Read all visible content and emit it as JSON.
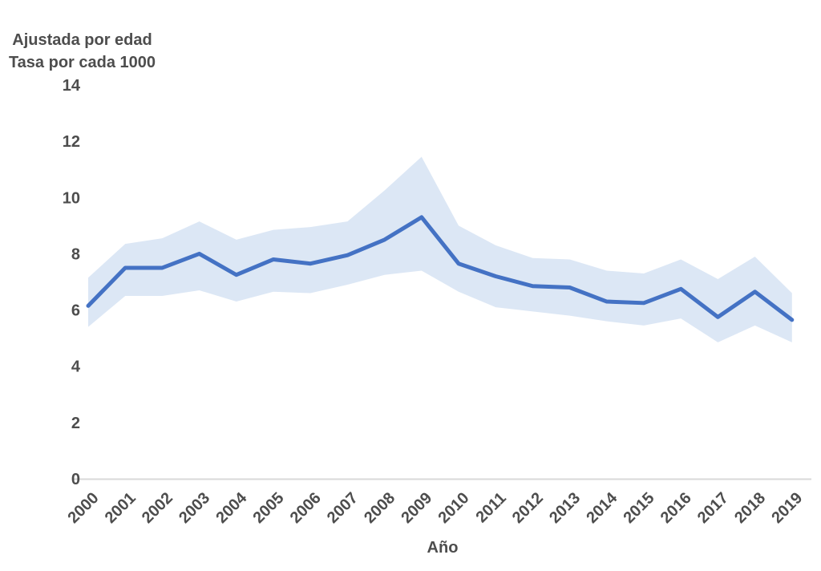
{
  "chart_data": {
    "type": "line",
    "title": "",
    "xlabel": "Año",
    "ylabel_lines": [
      "Ajustada por edad",
      "Tasa por cada 1000"
    ],
    "categories": [
      "2000",
      "2001",
      "2002",
      "2003",
      "2004",
      "2005",
      "2006",
      "2007",
      "2008",
      "2009",
      "2010",
      "2011",
      "2012",
      "2013",
      "2014",
      "2015",
      "2016",
      "2017",
      "2018",
      "2019"
    ],
    "series": [
      {
        "name": "tasa_ajustada",
        "values": [
          6.15,
          7.5,
          7.5,
          8.0,
          7.25,
          7.8,
          7.65,
          7.95,
          8.5,
          9.3,
          7.65,
          7.2,
          6.85,
          6.8,
          6.3,
          6.25,
          6.75,
          5.75,
          6.65,
          5.65
        ]
      },
      {
        "name": "banda_superior",
        "values": [
          7.15,
          8.35,
          8.55,
          9.15,
          8.5,
          8.85,
          8.95,
          9.15,
          10.25,
          11.45,
          9.0,
          8.3,
          7.85,
          7.8,
          7.4,
          7.3,
          7.8,
          7.1,
          7.9,
          6.6
        ]
      },
      {
        "name": "banda_inferior",
        "values": [
          5.4,
          6.5,
          6.5,
          6.7,
          6.3,
          6.65,
          6.6,
          6.9,
          7.25,
          7.4,
          6.65,
          6.1,
          5.95,
          5.8,
          5.6,
          5.45,
          5.7,
          4.85,
          5.45,
          4.85
        ]
      }
    ],
    "ylim": [
      0,
      14
    ],
    "yticks": [
      0,
      2,
      4,
      6,
      8,
      10,
      12,
      14
    ],
    "grid": "off",
    "legend": "none",
    "colors": {
      "line": "#4472C4",
      "band": "#DCE7F5",
      "axis_line": "#D9D9D9",
      "text": "#4D4D4D"
    }
  }
}
